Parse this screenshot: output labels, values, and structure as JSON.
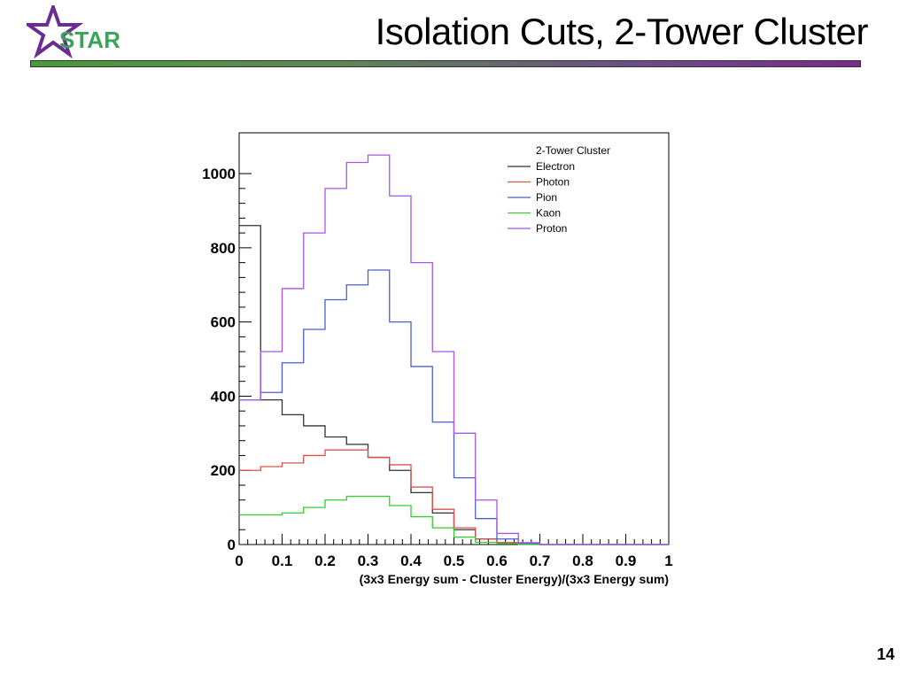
{
  "slide": {
    "title": "Isolation Cuts, 2-Tower Cluster",
    "logo_text": "STAR",
    "page_number": "14"
  },
  "colors": {
    "logo_star": "#6b2d8f",
    "logo_text": "#3aa35a",
    "bar_left": "#4a9a3a",
    "bar_right": "#7a2a8a"
  },
  "chart_data": {
    "type": "line",
    "title": "",
    "legend_title": "2-Tower Cluster",
    "legend_position": "top-right",
    "xlabel": "(3x3 Energy sum - Cluster Energy)/(3x3 Energy sum)",
    "ylabel": "",
    "xlim": [
      0,
      1
    ],
    "ylim": [
      0,
      1110
    ],
    "grid": false,
    "x_ticks": [
      "0",
      "0.1",
      "0.2",
      "0.3",
      "0.4",
      "0.5",
      "0.6",
      "0.7",
      "0.8",
      "0.9",
      "1"
    ],
    "y_ticks": [
      "0",
      "200",
      "400",
      "600",
      "800",
      "1000"
    ],
    "x": [
      0,
      0.05,
      0.1,
      0.15,
      0.2,
      0.25,
      0.3,
      0.35,
      0.4,
      0.45,
      0.5,
      0.55,
      0.6,
      0.65,
      0.7,
      0.75,
      0.8,
      0.85,
      0.9,
      0.95
    ],
    "series": [
      {
        "name": "Electron",
        "color": "#333333",
        "values": [
          860,
          390,
          350,
          320,
          290,
          270,
          235,
          200,
          140,
          85,
          40,
          15,
          5,
          1,
          0,
          0,
          0,
          0,
          0,
          0
        ]
      },
      {
        "name": "Photon",
        "color": "#d9534f",
        "values": [
          200,
          210,
          220,
          240,
          255,
          255,
          235,
          215,
          155,
          95,
          45,
          15,
          5,
          1,
          0,
          0,
          0,
          0,
          0,
          0
        ]
      },
      {
        "name": "Pion",
        "color": "#4a5fcf",
        "values": [
          390,
          410,
          490,
          580,
          660,
          700,
          740,
          600,
          480,
          330,
          180,
          70,
          15,
          3,
          0,
          0,
          0,
          0,
          0,
          0
        ]
      },
      {
        "name": "Kaon",
        "color": "#33cc33",
        "values": [
          80,
          80,
          85,
          100,
          120,
          130,
          130,
          105,
          75,
          45,
          20,
          6,
          2,
          0,
          0,
          0,
          0,
          0,
          0,
          0
        ]
      },
      {
        "name": "Proton",
        "color": "#a855e0",
        "values": [
          390,
          520,
          690,
          840,
          960,
          1030,
          1050,
          940,
          760,
          520,
          300,
          120,
          30,
          5,
          0,
          0,
          0,
          0,
          0,
          0
        ]
      }
    ]
  }
}
